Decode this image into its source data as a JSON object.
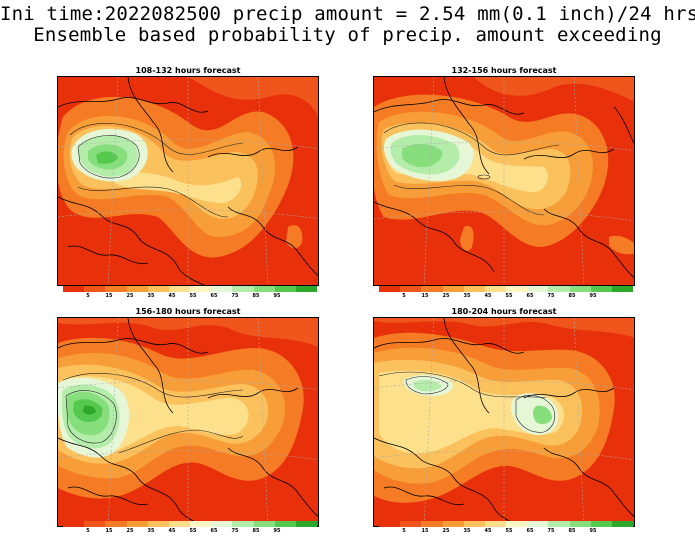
{
  "header": {
    "line1": "Ini time:2022082500 precip amount = 2.54 mm(0.1 inch)/24 hrs",
    "line2": "Ensemble based probability of precip. amount exceeding"
  },
  "panels": [
    {
      "title": "108-132 hours forecast",
      "hotspot": "west"
    },
    {
      "title": "132-156 hours forecast",
      "hotspot": "west"
    },
    {
      "title": "156-180 hours forecast",
      "hotspot": "west"
    },
    {
      "title": "180-204 hours forecast",
      "hotspot": "east"
    }
  ],
  "colorbar": {
    "labels": [
      "5",
      "15",
      "25",
      "35",
      "45",
      "55",
      "65",
      "75",
      "85",
      "95"
    ],
    "colors": [
      "#e8300a",
      "#f0561c",
      "#f57c24",
      "#f89e38",
      "#fbc15c",
      "#fde08c",
      "#fff6c4",
      "#e6f7d8",
      "#b4ecaa",
      "#86de7c",
      "#55c84e",
      "#2ea82a"
    ]
  }
}
